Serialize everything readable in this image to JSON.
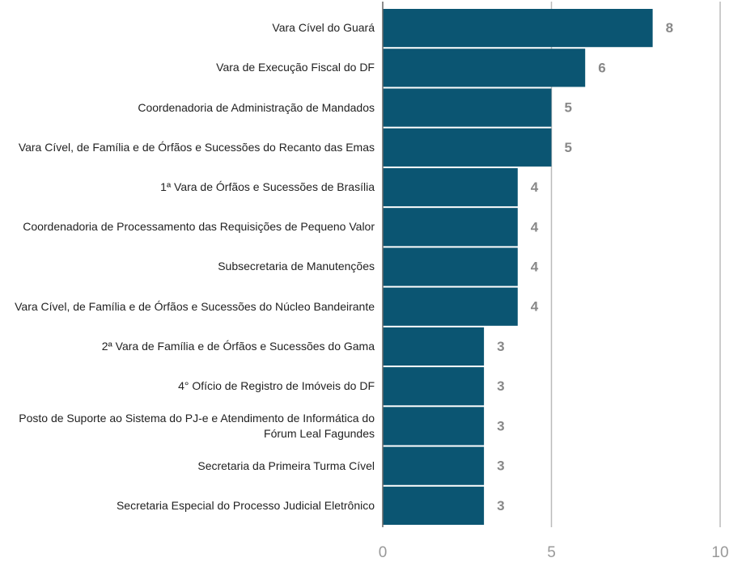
{
  "chart_data": {
    "type": "barh",
    "categories": [
      "Vara Cível do Guará",
      "Vara de Execução Fiscal do DF",
      "Coordenadoria de Administração de Mandados",
      "Vara Cível, de Família e de Órfãos e Sucessões do Recanto das Emas",
      "1ª Vara de Órfãos e Sucessões de Brasília",
      "Coordenadoria de Processamento das Requisições de Pequeno Valor",
      "Subsecretaria de Manutenções",
      "Vara Cível, de Família e de Órfãos e Sucessões do Núcleo Bandeirante",
      "2ª Vara de Família e de Órfãos e Sucessões do Gama",
      "4° Ofício de Registro de Imóveis do DF",
      "Posto de Suporte ao Sistema do PJ-e e Atendimento de Informática do Fórum Leal Fagundes",
      "Secretaria da Primeira Turma Cível",
      "Secretaria Especial do Processo Judicial Eletrônico"
    ],
    "values": [
      8,
      6,
      5,
      5,
      4,
      4,
      4,
      4,
      3,
      3,
      3,
      3,
      3
    ],
    "color": "#0b5572",
    "xlim": [
      0,
      10
    ],
    "xticks": [
      0,
      5,
      10
    ],
    "grid": true
  }
}
